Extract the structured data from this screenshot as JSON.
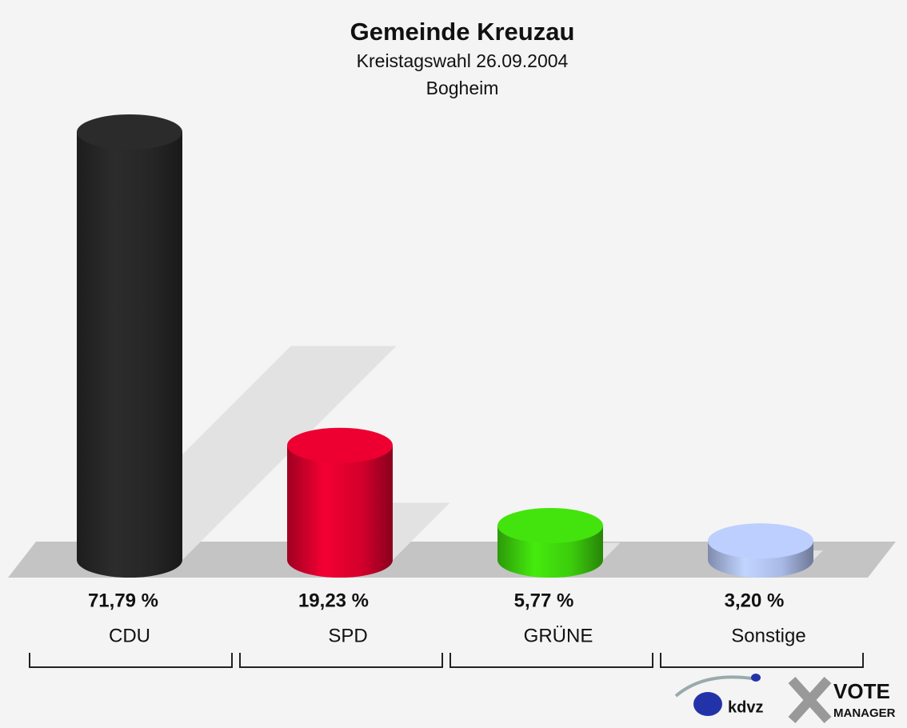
{
  "chart_data": {
    "type": "cylinder_bar",
    "title": "Gemeinde Kreuzau",
    "subtitle": "Kreistagswahl 26.09.2004",
    "district": "Bogheim",
    "categories": [
      "CDU",
      "SPD",
      "GRÜNE",
      "Sonstige"
    ],
    "values": [
      71.79,
      19.23,
      5.77,
      3.2
    ],
    "value_labels": [
      "71,79 %",
      "19,23 %",
      "5,77 %",
      "3,20 %"
    ],
    "colors": [
      "#262626",
      "#d4002c",
      "#3ccc0c",
      "#a9b9e6"
    ],
    "logo_texts": [
      "kdvz",
      "VOTE",
      "MANAGER"
    ]
  }
}
